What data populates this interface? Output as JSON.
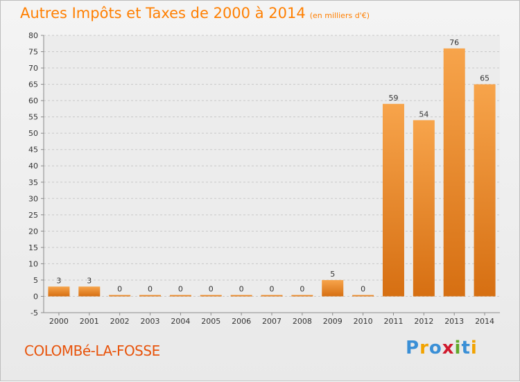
{
  "title": "Autres Impôts et Taxes de 2000 à 2014",
  "subtitle": "(en milliers d'€)",
  "commune": "COLOMBé-LA-FOSSE",
  "logo": {
    "text": "Proxiti",
    "letters": [
      "P",
      "r",
      "o",
      "x",
      "i",
      "t",
      "i"
    ]
  },
  "colors": {
    "bar_light": "#f7a44b",
    "bar_dark": "#d66f12",
    "title": "#ff7f00",
    "commune": "#e8530a"
  },
  "chart_data": {
    "type": "bar",
    "categories": [
      "2000",
      "2001",
      "2002",
      "2003",
      "2004",
      "2005",
      "2006",
      "2007",
      "2008",
      "2009",
      "2010",
      "2011",
      "2012",
      "2013",
      "2014"
    ],
    "values": [
      3,
      3,
      0,
      0,
      0,
      0,
      0,
      0,
      0,
      5,
      0,
      59,
      54,
      76,
      65
    ],
    "ylim": [
      -5,
      80
    ],
    "yticks": [
      -5,
      0,
      5,
      10,
      15,
      20,
      25,
      30,
      35,
      40,
      45,
      50,
      55,
      60,
      65,
      70,
      75,
      80
    ],
    "grid": true,
    "legend": "none"
  }
}
